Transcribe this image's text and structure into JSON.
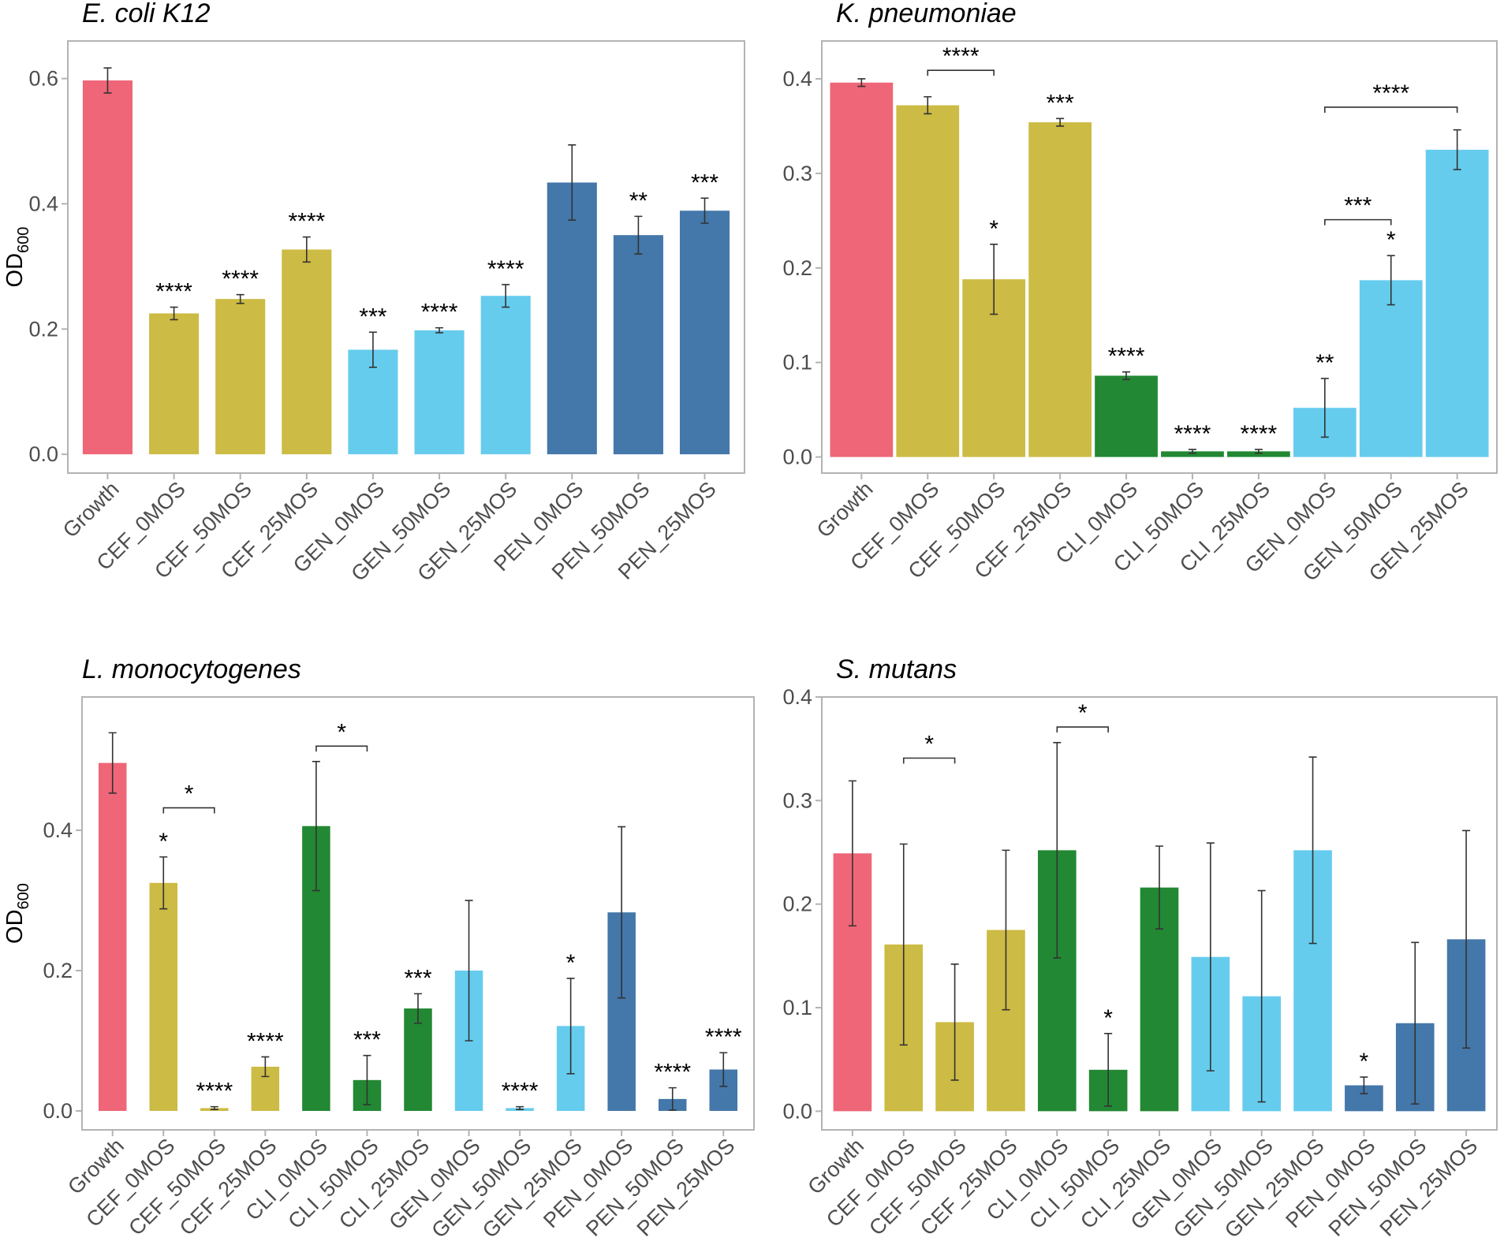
{
  "figure": {
    "y_axis_label_main": "OD",
    "y_axis_label_sub": "600",
    "colors": {
      "Growth": "#EE6677",
      "CEF": "#CCBB44",
      "CLI": "#228833",
      "GEN": "#66CCEE",
      "PEN": "#4477AA"
    }
  },
  "chart_data": [
    {
      "id": "ecoli",
      "type": "bar",
      "title": "E. coli K12",
      "ylabel_shown": true,
      "ylim": [
        -0.03,
        0.66
      ],
      "yticks": [
        0.0,
        0.2,
        0.4,
        0.6
      ],
      "ytick_labels": [
        "0.0",
        "0.2",
        "0.4",
        "0.6"
      ],
      "categories": [
        "Growth",
        "CEF_0MOS",
        "CEF_50MOS",
        "CEF_25MOS",
        "GEN_0MOS",
        "GEN_50MOS",
        "GEN_25MOS",
        "PEN_0MOS",
        "PEN_50MOS",
        "PEN_25MOS"
      ],
      "groups": [
        "Growth",
        "CEF",
        "CEF",
        "CEF",
        "GEN",
        "GEN",
        "GEN",
        "PEN",
        "PEN",
        "PEN"
      ],
      "values": [
        0.597,
        0.225,
        0.248,
        0.327,
        0.167,
        0.198,
        0.253,
        0.434,
        0.35,
        0.389
      ],
      "errors": [
        0.02,
        0.01,
        0.007,
        0.02,
        0.028,
        0.004,
        0.018,
        0.06,
        0.03,
        0.02
      ],
      "significance": [
        "",
        "****",
        "****",
        "****",
        "***",
        "****",
        "****",
        "",
        "**",
        "***"
      ],
      "brackets": []
    },
    {
      "id": "kpneu",
      "type": "bar",
      "title": "K. pneumoniae",
      "ylabel_shown": false,
      "ylim": [
        -0.017,
        0.44
      ],
      "yticks": [
        0.0,
        0.1,
        0.2,
        0.3,
        0.4
      ],
      "ytick_labels": [
        "0.0",
        "0.1",
        "0.2",
        "0.3",
        "0.4"
      ],
      "categories": [
        "Growth",
        "CEF_0MOS",
        "CEF_50MOS",
        "CEF_25MOS",
        "CLI_0MOS",
        "CLI_50MOS",
        "CLI_25MOS",
        "GEN_0MOS",
        "GEN_50MOS",
        "GEN_25MOS"
      ],
      "groups": [
        "Growth",
        "CEF",
        "CEF",
        "CEF",
        "CLI",
        "CLI",
        "CLI",
        "GEN",
        "GEN",
        "GEN"
      ],
      "values": [
        0.396,
        0.372,
        0.188,
        0.354,
        0.086,
        0.006,
        0.006,
        0.052,
        0.187,
        0.325
      ],
      "errors": [
        0.004,
        0.009,
        0.037,
        0.004,
        0.004,
        0.002,
        0.002,
        0.031,
        0.026,
        0.021
      ],
      "significance": [
        "",
        "",
        "*",
        "***",
        "****",
        "****",
        "****",
        "**",
        "*",
        ""
      ],
      "brackets": [
        {
          "from": 1,
          "to": 2,
          "label": "****",
          "y": 0.409
        },
        {
          "from": 7,
          "to": 8,
          "label": "***",
          "y": 0.251
        },
        {
          "from": 7,
          "to": 9,
          "label": "****",
          "y": 0.37
        }
      ]
    },
    {
      "id": "lmono",
      "type": "bar",
      "title": "L. monocytogenes",
      "ylabel_shown": true,
      "ylim": [
        -0.027,
        0.59
      ],
      "yticks": [
        0.0,
        0.2,
        0.4
      ],
      "ytick_labels": [
        "0.0",
        "0.2",
        "0.4"
      ],
      "categories": [
        "Growth",
        "CEF_0MOS",
        "CEF_50MOS",
        "CEF_25MOS",
        "CLI_0MOS",
        "CLI_50MOS",
        "CLI_25MOS",
        "GEN_0MOS",
        "GEN_50MOS",
        "GEN_25MOS",
        "PEN_0MOS",
        "PEN_50MOS",
        "PEN_25MOS"
      ],
      "groups": [
        "Growth",
        "CEF",
        "CEF",
        "CEF",
        "CLI",
        "CLI",
        "CLI",
        "GEN",
        "GEN",
        "GEN",
        "PEN",
        "PEN",
        "PEN"
      ],
      "values": [
        0.496,
        0.325,
        0.004,
        0.063,
        0.406,
        0.044,
        0.146,
        0.2,
        0.004,
        0.121,
        0.283,
        0.017,
        0.059
      ],
      "errors": [
        0.043,
        0.037,
        0.002,
        0.014,
        0.092,
        0.035,
        0.021,
        0.1,
        0.002,
        0.068,
        0.122,
        0.016,
        0.024
      ],
      "significance": [
        "",
        "*",
        "****",
        "****",
        "",
        "***",
        "***",
        "",
        "****",
        "*",
        "",
        "****",
        "****"
      ],
      "brackets": [
        {
          "from": 1,
          "to": 2,
          "label": "*",
          "y": 0.432
        },
        {
          "from": 4,
          "to": 5,
          "label": "*",
          "y": 0.52
        }
      ]
    },
    {
      "id": "smutans",
      "type": "bar",
      "title": "S. mutans",
      "ylabel_shown": false,
      "ylim": [
        -0.018,
        0.4
      ],
      "yticks": [
        0.0,
        0.1,
        0.2,
        0.3,
        0.4
      ],
      "ytick_labels": [
        "0.0",
        "0.1",
        "0.2",
        "0.3",
        "0.4"
      ],
      "categories": [
        "Growth",
        "CEF_0MOS",
        "CEF_50MOS",
        "CEF_25MOS",
        "CLI_0MOS",
        "CLI_50MOS",
        "CLI_25MOS",
        "GEN_0MOS",
        "GEN_50MOS",
        "GEN_25MOS",
        "PEN_0MOS",
        "PEN_50MOS",
        "PEN_25MOS"
      ],
      "groups": [
        "Growth",
        "CEF",
        "CEF",
        "CEF",
        "CLI",
        "CLI",
        "CLI",
        "GEN",
        "GEN",
        "GEN",
        "PEN",
        "PEN",
        "PEN"
      ],
      "values": [
        0.249,
        0.161,
        0.086,
        0.175,
        0.252,
        0.04,
        0.216,
        0.149,
        0.111,
        0.252,
        0.025,
        0.085,
        0.166
      ],
      "errors": [
        0.07,
        0.097,
        0.056,
        0.077,
        0.104,
        0.035,
        0.04,
        0.11,
        0.102,
        0.09,
        0.008,
        0.078,
        0.105
      ],
      "significance": [
        "",
        "",
        "",
        "",
        "",
        "*",
        "",
        "",
        "",
        "",
        "*",
        "",
        ""
      ],
      "brackets": [
        {
          "from": 1,
          "to": 2,
          "label": "*",
          "y": 0.341
        },
        {
          "from": 4,
          "to": 5,
          "label": "*",
          "y": 0.371
        }
      ]
    }
  ]
}
